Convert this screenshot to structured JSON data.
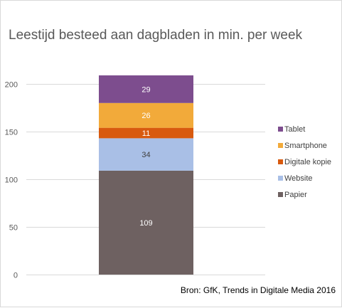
{
  "title": "Leestijd besteed aan dagbladen in min. per week",
  "source": "Bron: GfK, Trends in Digitale Media 2016",
  "chart_data": {
    "type": "bar",
    "stacked": true,
    "categories": [
      ""
    ],
    "series": [
      {
        "name": "Papier",
        "values": [
          109
        ],
        "color": "#6e6161"
      },
      {
        "name": "Website",
        "values": [
          34
        ],
        "color": "#a9bfe6"
      },
      {
        "name": "Digitale kopie",
        "values": [
          11
        ],
        "color": "#d85a0f"
      },
      {
        "name": "Smartphone",
        "values": [
          26
        ],
        "color": "#f2aa3a"
      },
      {
        "name": "Tablet",
        "values": [
          29
        ],
        "color": "#7d4d8e"
      }
    ],
    "title": "Leestijd besteed aan dagbladen in min. per week",
    "xlabel": "",
    "ylabel": "",
    "ylim": [
      0,
      200
    ],
    "yticks": [
      "0",
      "50",
      "100",
      "150",
      "200"
    ],
    "grid": true,
    "legend": "right",
    "data_labels": true
  }
}
